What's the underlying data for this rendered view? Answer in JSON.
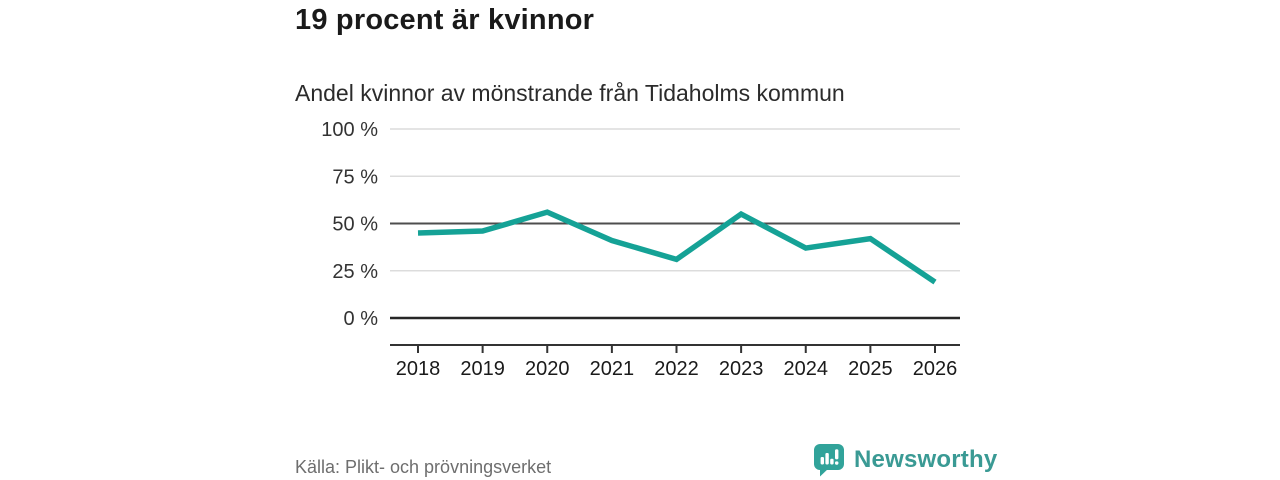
{
  "header": {
    "title": "19 procent är kvinnor",
    "subtitle": "Andel kvinnor av mönstrande från Tidaholms kommun"
  },
  "chart_data": {
    "type": "line",
    "title": "19 procent är kvinnor",
    "subtitle": "Andel kvinnor av mönstrande från Tidaholms kommun",
    "categories": [
      "2018",
      "2019",
      "2020",
      "2021",
      "2022",
      "2023",
      "2024",
      "2025",
      "2026"
    ],
    "values": [
      45,
      46,
      56,
      41,
      31,
      55,
      37,
      42,
      19
    ],
    "unit": "%",
    "xlabel": "",
    "ylabel": "",
    "ylim": [
      0,
      100
    ],
    "yticks": [
      0,
      25,
      50,
      75,
      100
    ],
    "ytick_labels": [
      "0 %",
      "25 %",
      "50 %",
      "75 %",
      "100 %"
    ],
    "grid": "horizontal",
    "emphasized_gridlines": [
      0,
      50
    ],
    "legend": "none",
    "line_color": "#15a296"
  },
  "footer": {
    "source": "Källa: Plikt- och prövningsverket",
    "brand": {
      "name": "Newsworthy",
      "icon": "newsworthy-logo-icon",
      "color": "#3a9a94"
    }
  },
  "colors": {
    "line": "#15a296",
    "grid_light": "#dcdcdc",
    "grid_mid": "#4d4d4d",
    "grid_zero": "#262626",
    "axis": "#333333",
    "title_text": "#1a1a1a",
    "label_text": "#333333",
    "source_text": "#6e6e6e",
    "logo_teal": "#31a39a",
    "background": "#ffffff"
  }
}
